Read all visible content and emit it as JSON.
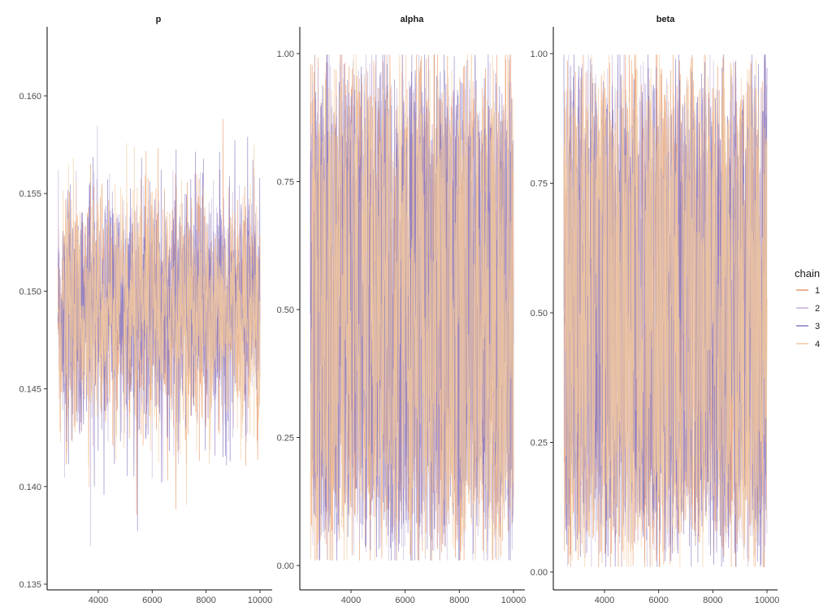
{
  "chart_data": {
    "type": "line",
    "x_range": [
      2500,
      10000
    ],
    "x_ticks": [
      4000,
      6000,
      8000,
      10000
    ],
    "x_tick_labels": [
      "4000",
      "6000",
      "8000",
      "10000"
    ],
    "grid": false,
    "legend": {
      "title": "chain",
      "placement": "right",
      "entries": [
        {
          "label": "1",
          "color": "#e8996b"
        },
        {
          "label": "2",
          "color": "#c4b3d9"
        },
        {
          "label": "3",
          "color": "#8a78c0"
        },
        {
          "label": "4",
          "color": "#f3c99d"
        }
      ]
    },
    "panels": [
      {
        "title": "p",
        "ylim": [
          0.135,
          0.162
        ],
        "y_ticks": [
          0.135,
          0.14,
          0.145,
          0.15,
          0.155,
          0.16
        ],
        "y_tick_labels": [
          "0.135",
          "0.140",
          "0.145",
          "0.150",
          "0.155",
          "0.160"
        ],
        "series_mean": 0.149,
        "series_sd": 0.003
      },
      {
        "title": "alpha",
        "ylim": [
          0.0,
          1.0
        ],
        "y_ticks": [
          0.0,
          0.25,
          0.5,
          0.75,
          1.0
        ],
        "y_tick_labels": [
          "0.00",
          "0.25",
          "0.50",
          "0.75",
          "1.00"
        ],
        "series_mean": 0.52,
        "series_sd": 0.27
      },
      {
        "title": "beta",
        "ylim": [
          0.0,
          1.0
        ],
        "y_ticks": [
          0.0,
          0.25,
          0.5,
          0.75,
          1.0
        ],
        "y_tick_labels": [
          "0.00",
          "0.25",
          "0.50",
          "0.75",
          "1.00"
        ],
        "series_mean": 0.52,
        "series_sd": 0.27
      }
    ]
  }
}
